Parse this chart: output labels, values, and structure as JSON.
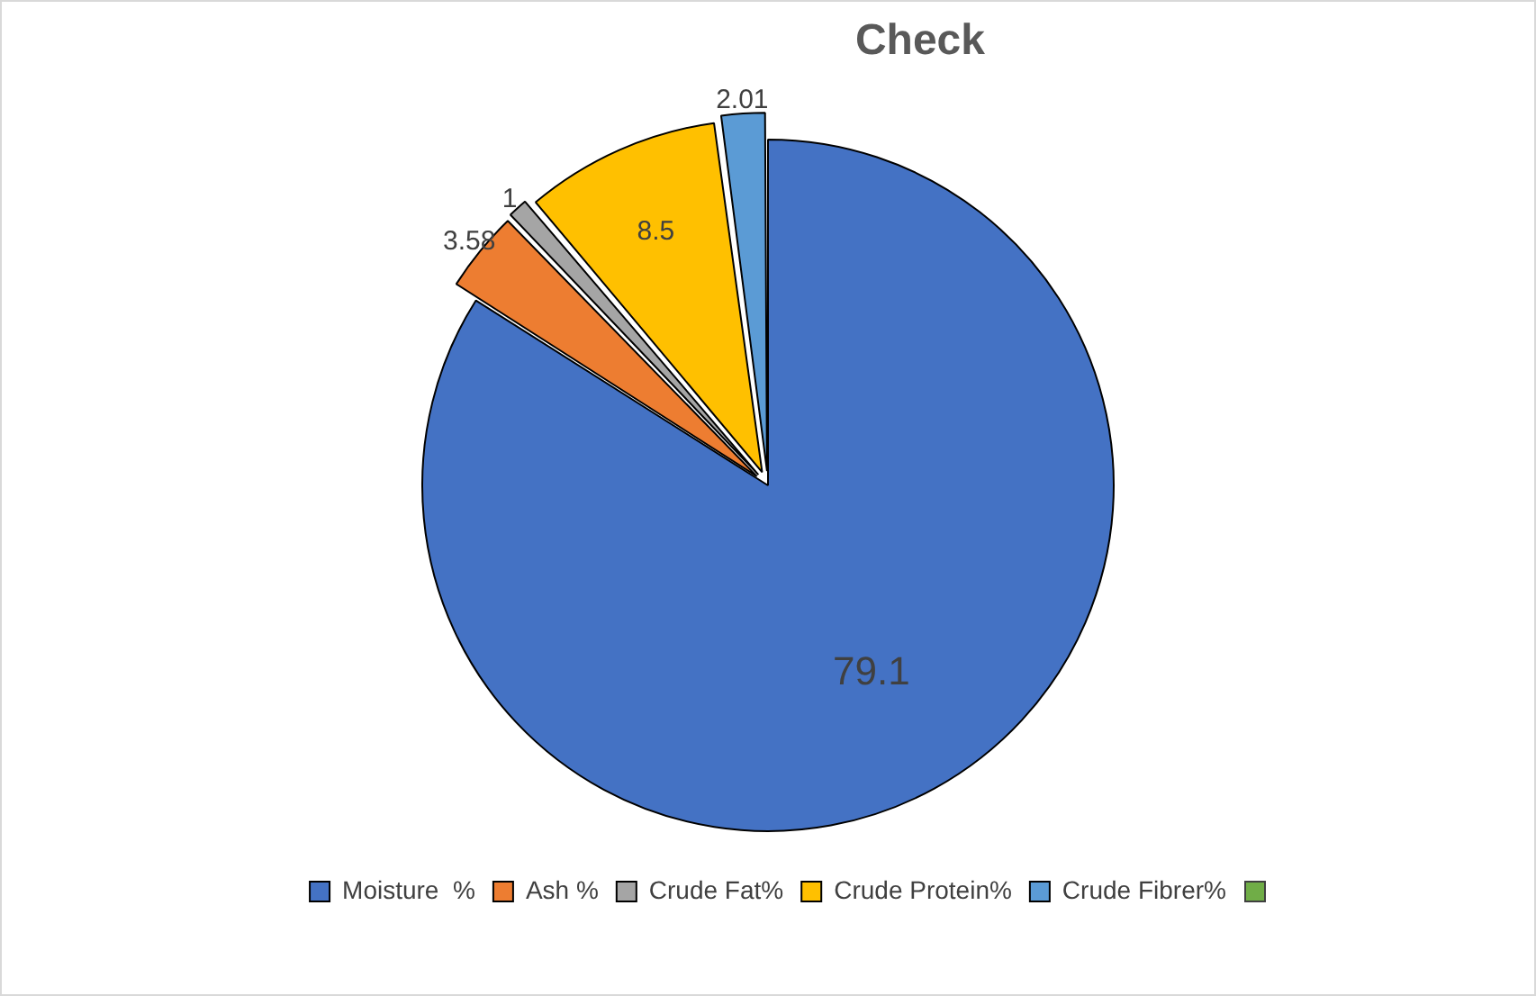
{
  "chart_data": {
    "type": "pie",
    "title": "Check",
    "categories": [
      "Moisture  %",
      "Ash %",
      "Crude Fat%",
      "Crude Protein%",
      "Crude Fibrer%"
    ],
    "values": [
      79.1,
      3.58,
      1,
      8.5,
      2.01
    ],
    "colors": [
      "#4472c4",
      "#ed7d31",
      "#a5a5a5",
      "#ffc000",
      "#5b9bd5"
    ],
    "data_labels": true,
    "legend": "bottom"
  }
}
